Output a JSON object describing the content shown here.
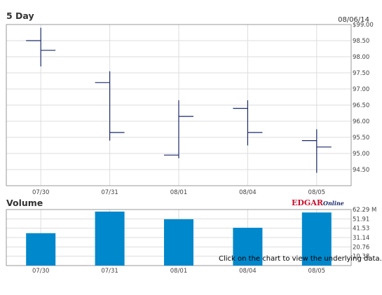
{
  "price_panel": {
    "title": "5 Day",
    "date": "08/06/14"
  },
  "volume_panel": {
    "title": "Volume",
    "logo_main": "EDGAR",
    "logo_sub": "Online"
  },
  "footer_note": "Click on the chart to view the underlying data.",
  "colors": {
    "ohlc": "#1b2a6b",
    "volume_bar": "#0088cc",
    "grid": "#dddddd",
    "axis": "#999999"
  },
  "chart_data": [
    {
      "type": "ohlc",
      "title": "5 Day",
      "categories": [
        "07/30",
        "07/31",
        "08/01",
        "08/04",
        "08/05"
      ],
      "open": [
        98.5,
        97.2,
        94.95,
        96.4,
        95.4
      ],
      "high": [
        98.9,
        97.55,
        96.65,
        96.65,
        95.75
      ],
      "low": [
        97.7,
        95.4,
        94.85,
        95.25,
        94.4
      ],
      "close": [
        98.2,
        95.65,
        96.15,
        95.65,
        95.2
      ],
      "ylim": [
        94.0,
        99.0
      ],
      "yticks": [
        "94.50",
        "95.00",
        "95.50",
        "96.00",
        "96.50",
        "97.00",
        "97.50",
        "98.00",
        "98.50",
        "$99.00"
      ],
      "ytick_values": [
        94.5,
        95.0,
        95.5,
        96.0,
        96.5,
        97.0,
        97.5,
        98.0,
        98.5,
        99.0
      ],
      "grid": true
    },
    {
      "type": "bar",
      "title": "Volume",
      "categories": [
        "07/30",
        "07/31",
        "08/01",
        "08/04",
        "08/05"
      ],
      "values": [
        36.0,
        60.0,
        51.5,
        42.0,
        59.0
      ],
      "unit": "M",
      "ylim": [
        0,
        62.29
      ],
      "yticks": [
        "10.38",
        "20.76",
        "31.14",
        "41.53",
        "51.91",
        "62.29 M"
      ],
      "ytick_values": [
        10.38,
        20.76,
        31.14,
        41.53,
        51.91,
        62.29
      ],
      "grid": true
    }
  ]
}
